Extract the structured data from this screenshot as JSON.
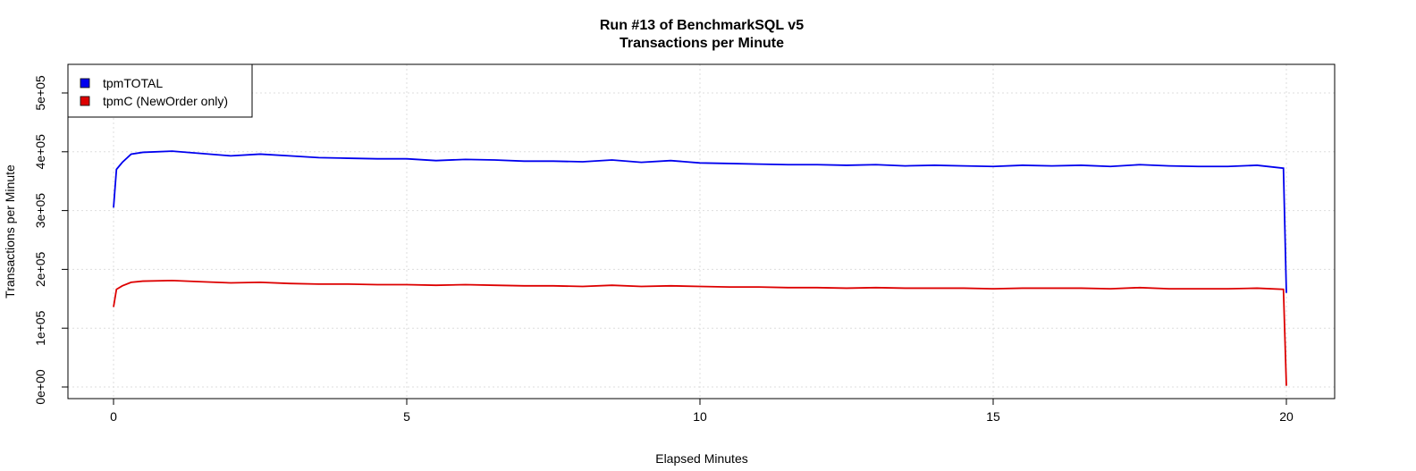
{
  "chart_data": {
    "type": "line",
    "title": "Run #13 of BenchmarkSQL v5",
    "subtitle": "Transactions per Minute",
    "xlabel": "Elapsed Minutes",
    "ylabel": "Transactions per Minute",
    "xlim": [
      -0.75,
      20.75
    ],
    "ylim": [
      -20000,
      525000
    ],
    "xticks": [
      0,
      5,
      10,
      15,
      20
    ],
    "xtick_labels": [
      "0",
      "5",
      "10",
      "15",
      "20"
    ],
    "yticks": [
      0,
      100000,
      200000,
      300000,
      400000,
      500000
    ],
    "ytick_labels": [
      "0e+00",
      "1e+05",
      "2e+05",
      "3e+05",
      "4e+05",
      "5e+05"
    ],
    "grid": true,
    "legend_position": "top-left",
    "x": [
      0,
      0.05,
      0.15,
      0.3,
      0.5,
      1,
      1.5,
      2,
      2.5,
      3,
      3.5,
      4,
      4.5,
      5,
      5.5,
      6,
      6.5,
      7,
      7.5,
      8,
      8.5,
      9,
      9.5,
      10,
      10.5,
      11,
      11.5,
      12,
      12.5,
      13,
      13.5,
      14,
      14.5,
      15,
      15.5,
      16,
      16.5,
      17,
      17.5,
      18,
      18.5,
      19,
      19.5,
      19.95,
      20
    ],
    "series": [
      {
        "name": "tpmTOTAL",
        "color": "#0000ee",
        "values": [
          305000,
          370000,
          382000,
          396000,
          399000,
          401000,
          397000,
          393000,
          396000,
          393000,
          390000,
          389000,
          388000,
          388000,
          385000,
          387000,
          386000,
          384000,
          384000,
          383000,
          386000,
          382000,
          385000,
          381000,
          380000,
          379000,
          378000,
          378000,
          377000,
          378000,
          376000,
          377000,
          376000,
          375000,
          377000,
          376000,
          377000,
          375000,
          378000,
          376000,
          375000,
          375000,
          377000,
          372000,
          160000
        ]
      },
      {
        "name": "tpmC (NewOrder only)",
        "color": "#dd0000",
        "values": [
          136000,
          166000,
          172000,
          178000,
          180000,
          181000,
          179000,
          177000,
          178000,
          176000,
          175000,
          175000,
          174000,
          174000,
          173000,
          174000,
          173000,
          172000,
          172000,
          171000,
          173000,
          171000,
          172000,
          171000,
          170000,
          170000,
          169000,
          169000,
          168000,
          169000,
          168000,
          168000,
          168000,
          167000,
          168000,
          168000,
          168000,
          167000,
          169000,
          167000,
          167000,
          167000,
          168000,
          166000,
          2000
        ]
      }
    ]
  }
}
